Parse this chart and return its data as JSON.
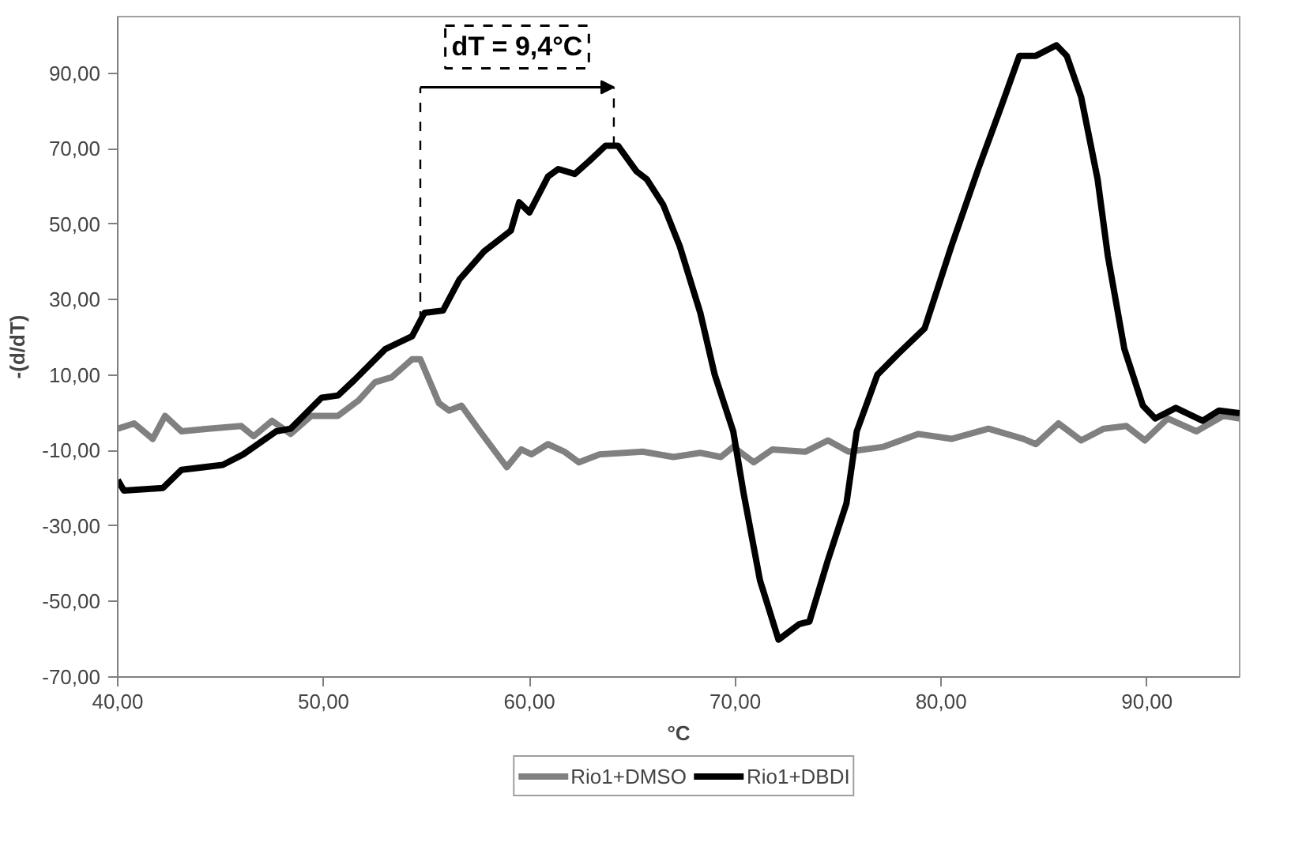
{
  "chart_data": {
    "type": "line",
    "xlabel": "°C",
    "ylabel": "-(d/dT)",
    "xlim": [
      40,
      94.5
    ],
    "ylim": [
      -70,
      105
    ],
    "xticks": [
      {
        "value": 40,
        "label": "40,00"
      },
      {
        "value": 50,
        "label": "50,00"
      },
      {
        "value": 60,
        "label": "60,00"
      },
      {
        "value": 70,
        "label": "70,00"
      },
      {
        "value": 80,
        "label": "80,00"
      },
      {
        "value": 90,
        "label": "90,00"
      }
    ],
    "yticks": [
      {
        "value": -70,
        "label": "-70,00"
      },
      {
        "value": -50,
        "label": "-50,00"
      },
      {
        "value": -30,
        "label": "-30,00"
      },
      {
        "value": -10,
        "label": "-10,00"
      },
      {
        "value": 10,
        "label": "10,00"
      },
      {
        "value": 30,
        "label": "30,00"
      },
      {
        "value": 50,
        "label": "50,00"
      },
      {
        "value": 70,
        "label": "70,00"
      },
      {
        "value": 90,
        "label": "90,00"
      }
    ],
    "grid": false,
    "legend": "bottom",
    "marker": "none",
    "line_style": "solid",
    "annotations": [
      "dT = 9,4°C"
    ],
    "ref_lines": [
      {
        "axis": "x",
        "value": 54.7,
        "label": null,
        "line_style": "dashed",
        "color": "#000000"
      },
      {
        "axis": "x",
        "value": 64.1,
        "label": null,
        "line_style": "dashed",
        "color": "#000000"
      }
    ],
    "series": [
      {
        "name": "Rio1+DMSO",
        "color": "#808080",
        "x": [
          40.0,
          40.8,
          41.7,
          42.3,
          43.1,
          44.4,
          46.0,
          46.6,
          47.5,
          48.4,
          49.4,
          50.7,
          51.7,
          52.5,
          53.3,
          54.3,
          54.7,
          55.6,
          56.1,
          56.7,
          57.6,
          58.9,
          59.6,
          60.1,
          60.9,
          61.7,
          62.4,
          63.4,
          65.5,
          67.0,
          68.3,
          69.3,
          69.9,
          70.9,
          71.8,
          73.4,
          74.5,
          75.5,
          77.2,
          78.9,
          80.5,
          82.3,
          84.0,
          84.6,
          85.7,
          86.8,
          87.9,
          89.0,
          89.9,
          91.0,
          92.4,
          93.7,
          94.5
        ],
        "values": [
          -4.2,
          -2.8,
          -6.9,
          -0.8,
          -4.9,
          -4.2,
          -3.5,
          -6.2,
          -2.1,
          -5.6,
          -0.8,
          -0.8,
          3.3,
          8.1,
          9.4,
          14.2,
          14.2,
          2.6,
          0.6,
          1.9,
          -4.9,
          -14.4,
          -9.7,
          -11.0,
          -8.3,
          -10.3,
          -13.1,
          -11.0,
          -10.3,
          -11.7,
          -10.6,
          -11.7,
          -9.0,
          -13.1,
          -9.7,
          -10.3,
          -7.3,
          -10.3,
          -9.0,
          -5.6,
          -6.9,
          -4.2,
          -6.9,
          -8.3,
          -2.8,
          -7.3,
          -4.2,
          -3.5,
          -7.3,
          -1.5,
          -4.9,
          -0.8,
          -1.5
        ]
      },
      {
        "name": "Rio1+DBDI",
        "color": "#000000",
        "x": [
          40.0,
          40.3,
          42.2,
          43.1,
          45.1,
          46.1,
          47.7,
          48.4,
          49.9,
          50.7,
          51.5,
          53.0,
          54.3,
          54.9,
          55.8,
          56.6,
          57.8,
          59.1,
          59.5,
          60.0,
          60.9,
          61.4,
          62.2,
          62.9,
          63.7,
          64.3,
          65.2,
          65.7,
          66.5,
          67.3,
          68.3,
          69.0,
          69.9,
          70.4,
          71.2,
          72.1,
          73.1,
          73.6,
          74.5,
          75.4,
          75.9,
          76.9,
          77.9,
          79.2,
          80.5,
          81.8,
          83.0,
          83.8,
          84.6,
          85.6,
          86.1,
          86.8,
          87.6,
          88.1,
          88.9,
          89.8,
          90.4,
          91.4,
          92.7,
          93.5,
          94.5
        ],
        "values": [
          -17.8,
          -20.6,
          -19.9,
          -15.1,
          -13.8,
          -11.0,
          -4.9,
          -4.2,
          4.0,
          4.6,
          8.7,
          16.9,
          20.3,
          26.5,
          27.1,
          35.3,
          42.8,
          48.3,
          55.8,
          53.1,
          62.6,
          64.6,
          63.3,
          66.7,
          70.8,
          70.8,
          64.0,
          61.9,
          55.1,
          44.2,
          26.5,
          10.1,
          -4.9,
          -21.2,
          -44.4,
          -60.1,
          -56.0,
          -55.3,
          -39.0,
          -24.0,
          -4.9,
          10.1,
          15.6,
          22.4,
          44.2,
          64.6,
          82.4,
          94.6,
          94.6,
          97.4,
          94.6,
          83.7,
          61.9,
          41.5,
          16.9,
          1.9,
          -1.5,
          1.3,
          -2.1,
          0.6,
          -0.1
        ]
      }
    ]
  }
}
